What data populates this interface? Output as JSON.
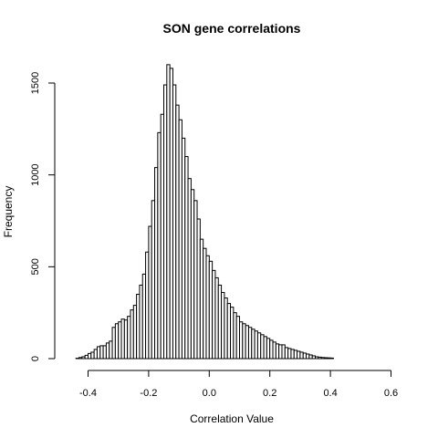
{
  "chart_data": {
    "type": "bar",
    "title": "SON gene correlations",
    "xlabel": "Correlation Value",
    "ylabel": "Frequency",
    "xlim": [
      -0.4,
      0.6
    ],
    "ylim": [
      0,
      1600
    ],
    "x_ticks": [
      -0.4,
      -0.2,
      0.0,
      0.2,
      0.4,
      0.6
    ],
    "x_tick_labels": [
      "-0.4",
      "-0.2",
      "0.0",
      "0.2",
      "0.4",
      "0.6"
    ],
    "y_ticks": [
      0,
      500,
      1000,
      1500
    ],
    "y_tick_labels": [
      "0",
      "500",
      "1000",
      "1500"
    ],
    "bin_width": 0.01,
    "bin_start": -0.44,
    "values": [
      2,
      6,
      10,
      18,
      28,
      35,
      50,
      65,
      70,
      70,
      85,
      95,
      170,
      190,
      200,
      215,
      210,
      230,
      265,
      290,
      350,
      400,
      460,
      580,
      720,
      860,
      1040,
      1230,
      1330,
      1490,
      1600,
      1580,
      1490,
      1380,
      1300,
      1200,
      1100,
      980,
      920,
      860,
      760,
      650,
      600,
      560,
      530,
      480,
      440,
      400,
      360,
      330,
      300,
      280,
      250,
      230,
      200,
      190,
      180,
      170,
      160,
      150,
      140,
      130,
      120,
      110,
      100,
      90,
      80,
      75,
      75,
      60,
      55,
      50,
      45,
      40,
      35,
      30,
      25,
      20,
      15,
      10,
      8,
      6,
      5,
      4,
      3
    ]
  }
}
